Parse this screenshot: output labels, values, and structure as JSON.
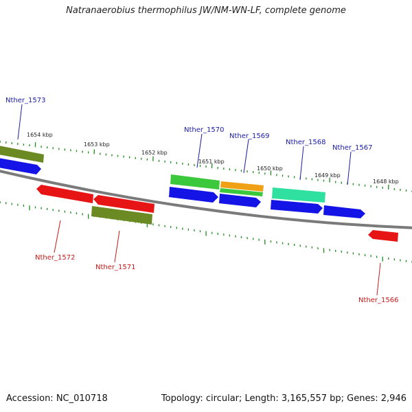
{
  "title": "Natranaerobius thermophilus JW/NM-WN-LF, complete genome",
  "footer": {
    "accession": "Accession: NC_010718",
    "summary": "Topology: circular; Length: 3,165,557 bp; Genes: 2,946"
  },
  "ruler_labels": [
    "1654 kbp",
    "1653 kbp",
    "1652 kbp",
    "1651 kbp",
    "1650 kbp",
    "1649 kbp",
    "1648 kbp"
  ],
  "genes": [
    {
      "name": "Nther_1573",
      "strand": "forward"
    },
    {
      "name": "Nther_1570",
      "strand": "forward"
    },
    {
      "name": "Nther_1569",
      "strand": "forward"
    },
    {
      "name": "Nther_1568",
      "strand": "forward"
    },
    {
      "name": "Nther_1567",
      "strand": "forward"
    },
    {
      "name": "Nther_1572",
      "strand": "reverse"
    },
    {
      "name": "Nther_1571",
      "strand": "reverse"
    },
    {
      "name": "Nther_1566",
      "strand": "reverse"
    }
  ],
  "colors": {
    "forward_label": "#1a1aa8",
    "reverse_label": "#c81818",
    "cds_blue": "#1414e6",
    "cds_red": "#e61414",
    "olive": "#6b8a23",
    "green": "#3cc83c",
    "orange": "#f0a014",
    "aqua": "#30e0a0",
    "backbone": "#8a8a8a",
    "ticks": "#1f8a1f"
  }
}
